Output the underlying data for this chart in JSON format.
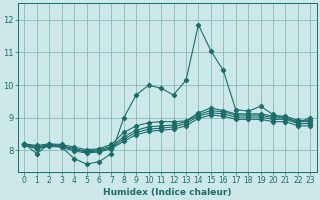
{
  "title": "",
  "xlabel": "Humidex (Indice chaleur)",
  "bg_color": "#cce8e8",
  "grid_color": "#88bbbb",
  "line_color": "#1a6e6a",
  "xlim": [
    -0.5,
    23.5
  ],
  "ylim": [
    7.35,
    12.5
  ],
  "yticks": [
    8,
    9,
    10,
    11,
    12
  ],
  "xticks": [
    0,
    1,
    2,
    3,
    4,
    5,
    6,
    7,
    8,
    9,
    10,
    11,
    12,
    13,
    14,
    15,
    16,
    17,
    18,
    19,
    20,
    21,
    22,
    23
  ],
  "series": [
    [
      8.2,
      7.9,
      8.2,
      8.1,
      7.75,
      7.58,
      7.65,
      7.9,
      9.0,
      9.7,
      10.0,
      9.9,
      9.7,
      10.15,
      11.85,
      11.05,
      10.45,
      9.25,
      9.2,
      9.35,
      9.1,
      9.0,
      8.85,
      9.0
    ],
    [
      8.2,
      8.15,
      8.2,
      8.18,
      8.1,
      8.02,
      8.05,
      8.18,
      8.55,
      8.75,
      8.85,
      8.88,
      8.88,
      8.9,
      9.15,
      9.3,
      9.22,
      9.12,
      9.12,
      9.12,
      9.05,
      9.05,
      8.92,
      8.92
    ],
    [
      8.2,
      8.1,
      8.18,
      8.15,
      8.05,
      7.98,
      8.02,
      8.12,
      8.42,
      8.62,
      8.72,
      8.75,
      8.78,
      8.88,
      9.1,
      9.22,
      9.18,
      9.08,
      9.08,
      9.08,
      9.0,
      9.0,
      8.88,
      8.88
    ],
    [
      8.18,
      8.08,
      8.15,
      8.12,
      8.02,
      7.95,
      7.98,
      8.08,
      8.35,
      8.55,
      8.65,
      8.68,
      8.72,
      8.82,
      9.05,
      9.15,
      9.12,
      9.02,
      9.02,
      9.02,
      8.95,
      8.95,
      8.82,
      8.82
    ],
    [
      8.15,
      8.05,
      8.12,
      8.1,
      7.98,
      7.92,
      7.95,
      8.05,
      8.28,
      8.48,
      8.58,
      8.62,
      8.65,
      8.75,
      8.98,
      9.08,
      9.05,
      8.95,
      8.95,
      8.95,
      8.88,
      8.88,
      8.75,
      8.75
    ]
  ],
  "marker": "D",
  "marker_size": 2.2,
  "tick_fontsize": 5.5,
  "xlabel_fontsize": 6.5
}
